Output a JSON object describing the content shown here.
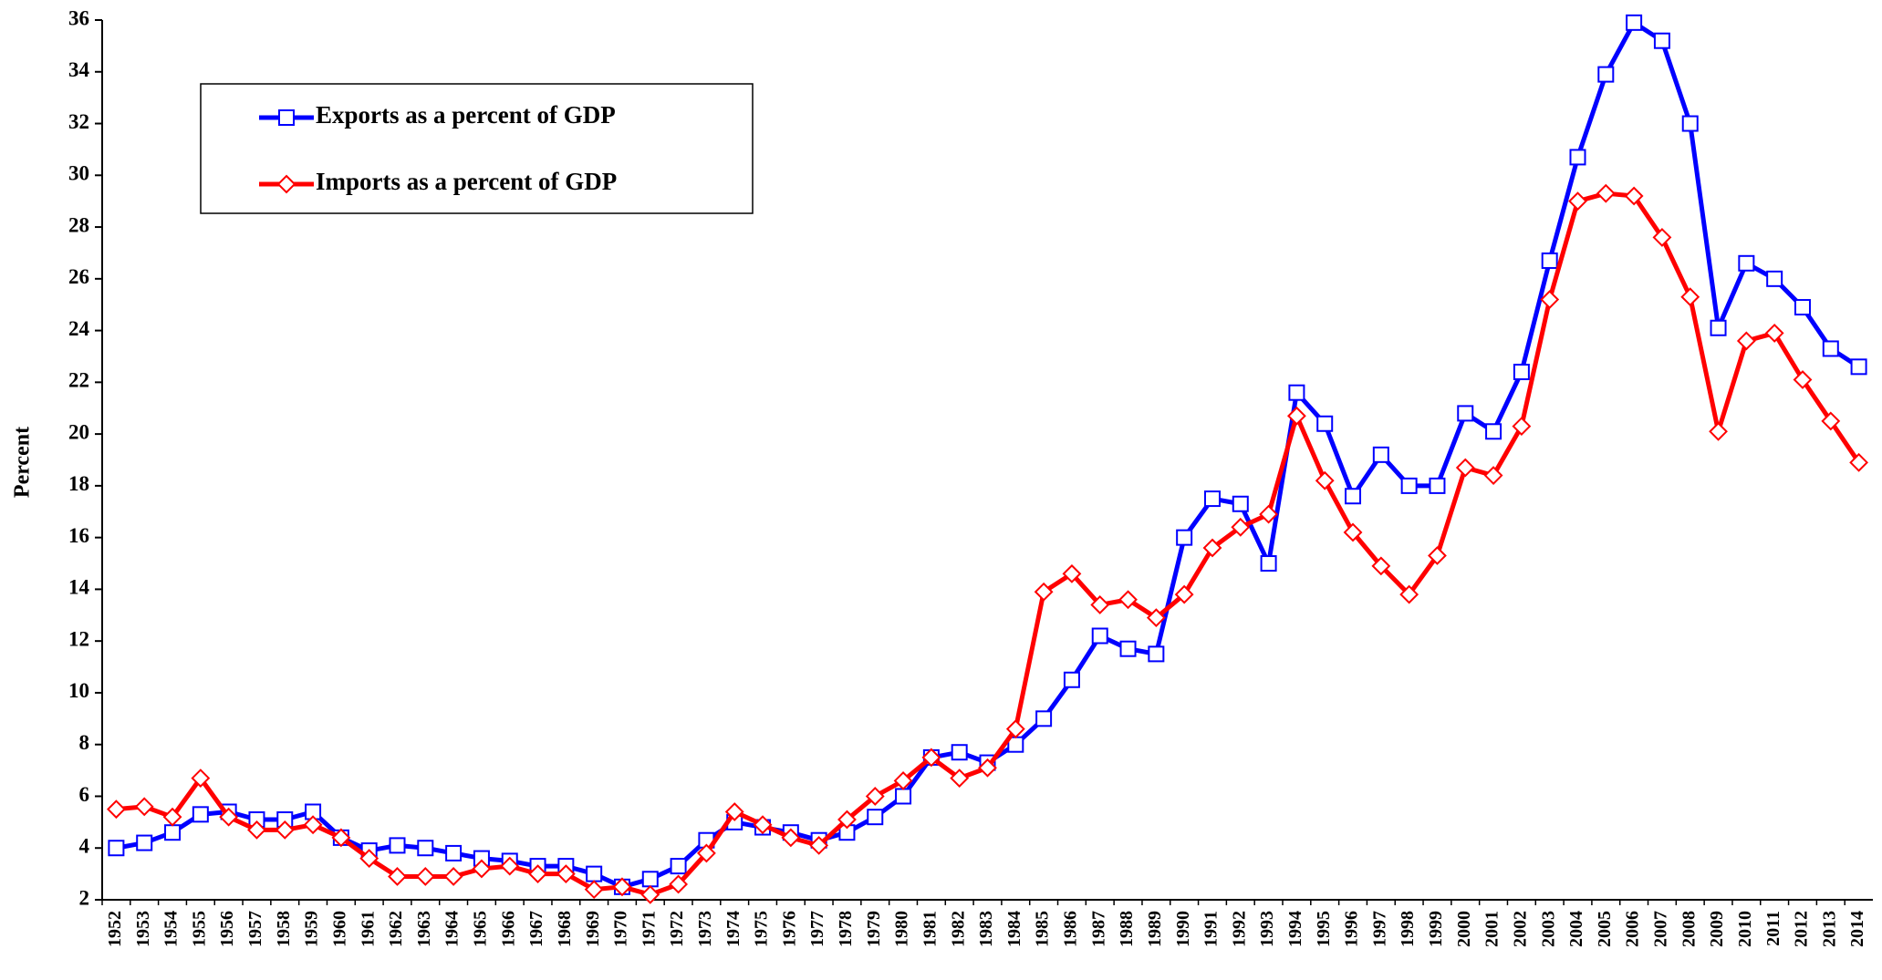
{
  "chart_data": {
    "type": "line",
    "ylabel": "Percent",
    "categories": [
      "1952",
      "1953",
      "1954",
      "1955",
      "1956",
      "1957",
      "1958",
      "1959",
      "1960",
      "1961",
      "1962",
      "1963",
      "1964",
      "1965",
      "1966",
      "1967",
      "1968",
      "1969",
      "1970",
      "1971",
      "1972",
      "1973",
      "1974",
      "1975",
      "1976",
      "1977",
      "1978",
      "1979",
      "1980",
      "1981",
      "1982",
      "1983",
      "1984",
      "1985",
      "1986",
      "1987",
      "1988",
      "1989",
      "1990",
      "1991",
      "1992",
      "1993",
      "1994",
      "1995",
      "1996",
      "1997",
      "1998",
      "1999",
      "2000",
      "2001",
      "2002",
      "2003",
      "2004",
      "2005",
      "2006",
      "2007",
      "2008",
      "2009",
      "2010",
      "2011",
      "2012",
      "2013",
      "2014"
    ],
    "series": [
      {
        "name": "Exports as a percent of GDP",
        "color": "#0000ff",
        "marker": "square",
        "values": [
          4.0,
          4.2,
          4.6,
          5.3,
          5.4,
          5.1,
          5.1,
          5.4,
          4.4,
          3.9,
          4.1,
          4.0,
          3.8,
          3.6,
          3.5,
          3.3,
          3.3,
          3.0,
          2.5,
          2.8,
          3.3,
          4.3,
          5.0,
          4.8,
          4.6,
          4.3,
          4.6,
          5.2,
          6.0,
          7.5,
          7.7,
          7.3,
          8.0,
          9.0,
          10.5,
          12.2,
          11.7,
          11.5,
          16.0,
          17.5,
          17.3,
          15.0,
          21.6,
          20.4,
          17.6,
          19.2,
          18.0,
          18.0,
          20.8,
          20.1,
          22.4,
          26.7,
          30.7,
          33.9,
          35.9,
          35.2,
          32.0,
          24.1,
          26.6,
          26.0,
          24.9,
          23.3,
          22.6
        ]
      },
      {
        "name": "Imports as a percent of GDP",
        "color": "#ff0000",
        "marker": "diamond",
        "values": [
          5.5,
          5.6,
          5.2,
          6.7,
          5.2,
          4.7,
          4.7,
          4.9,
          4.4,
          3.6,
          2.9,
          2.9,
          2.9,
          3.2,
          3.3,
          3.0,
          3.0,
          2.4,
          2.5,
          2.2,
          2.6,
          3.8,
          5.4,
          4.9,
          4.4,
          4.1,
          5.1,
          6.0,
          6.6,
          7.5,
          6.7,
          7.1,
          8.6,
          13.9,
          14.6,
          13.4,
          13.6,
          12.9,
          13.8,
          15.6,
          16.4,
          16.9,
          20.7,
          18.2,
          16.2,
          14.9,
          13.8,
          15.3,
          18.7,
          18.4,
          20.3,
          25.2,
          29.0,
          29.3,
          29.2,
          27.6,
          25.3,
          20.1,
          23.6,
          23.9,
          22.1,
          20.5,
          18.9
        ]
      }
    ],
    "ylim": [
      2,
      36
    ],
    "yticks": [
      2,
      4,
      6,
      8,
      10,
      12,
      14,
      16,
      18,
      20,
      22,
      24,
      26,
      28,
      30,
      32,
      34,
      36
    ],
    "legend": "upper left",
    "grid": false
  }
}
